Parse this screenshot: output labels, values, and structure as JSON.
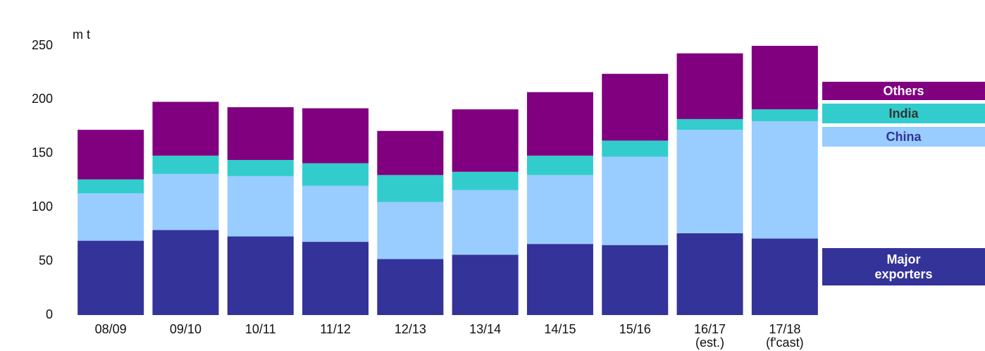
{
  "chart_data": {
    "type": "stacked_bar",
    "y_axis_label": "m t",
    "categories": [
      "08/09",
      "09/10",
      "10/11",
      "11/12",
      "12/13",
      "13/14",
      "14/15",
      "15/16",
      "16/17\n(est.)",
      "17/18\n(f'cast)"
    ],
    "series": [
      {
        "name": "Major exporters",
        "color": "#333399",
        "values": [
          69,
          79,
          73,
          68,
          52,
          56,
          66,
          65,
          76,
          71
        ]
      },
      {
        "name": "China",
        "color": "#99ccff",
        "values": [
          44,
          52,
          56,
          52,
          53,
          60,
          64,
          82,
          96,
          109
        ]
      },
      {
        "name": "India",
        "color": "#33cccc",
        "values": [
          13,
          17,
          15,
          21,
          25,
          17,
          18,
          15,
          10,
          11
        ]
      },
      {
        "name": "Others",
        "color": "#800080",
        "values": [
          46,
          50,
          49,
          51,
          41,
          58,
          59,
          62,
          61,
          59
        ]
      }
    ],
    "ylim": [
      0,
      250
    ],
    "yticks": [
      0,
      50,
      100,
      150,
      200,
      250
    ]
  }
}
